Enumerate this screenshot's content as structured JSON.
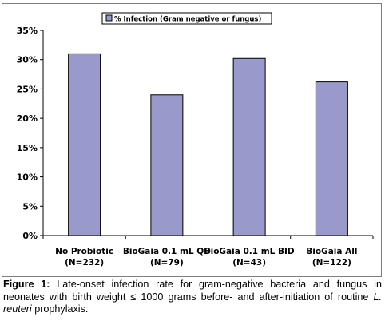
{
  "chart_data": {
    "type": "bar",
    "categories": [
      "No Probiotic",
      "BioGaia 0.1 mL QD",
      "BioGaia 0.1 mL BID",
      "BioGaia All"
    ],
    "category_sublabels": [
      "(N=232)",
      "(N=79)",
      "(N=43)",
      "(N=122)"
    ],
    "series": [
      {
        "name": "% Infection (Gram negative or fungus)",
        "values": [
          31,
          24,
          30.2,
          26.2
        ],
        "color": "#9999cc"
      }
    ],
    "yticks": [
      "0%",
      "5%",
      "10%",
      "15%",
      "20%",
      "25%",
      "30%",
      "35%"
    ],
    "ylim": [
      0,
      35
    ],
    "grid": false,
    "legend": "top-center",
    "xlabel": "",
    "ylabel": ""
  },
  "caption": {
    "label": "Figure 1:",
    "text_before": " Late-onset infection rate for gram-negative bacteria and fungus in neonates with birth weight ≤ 1000 grams before- and after-initiation of routine ",
    "species": "L. reuteri",
    "text_after": " prophylaxis."
  }
}
